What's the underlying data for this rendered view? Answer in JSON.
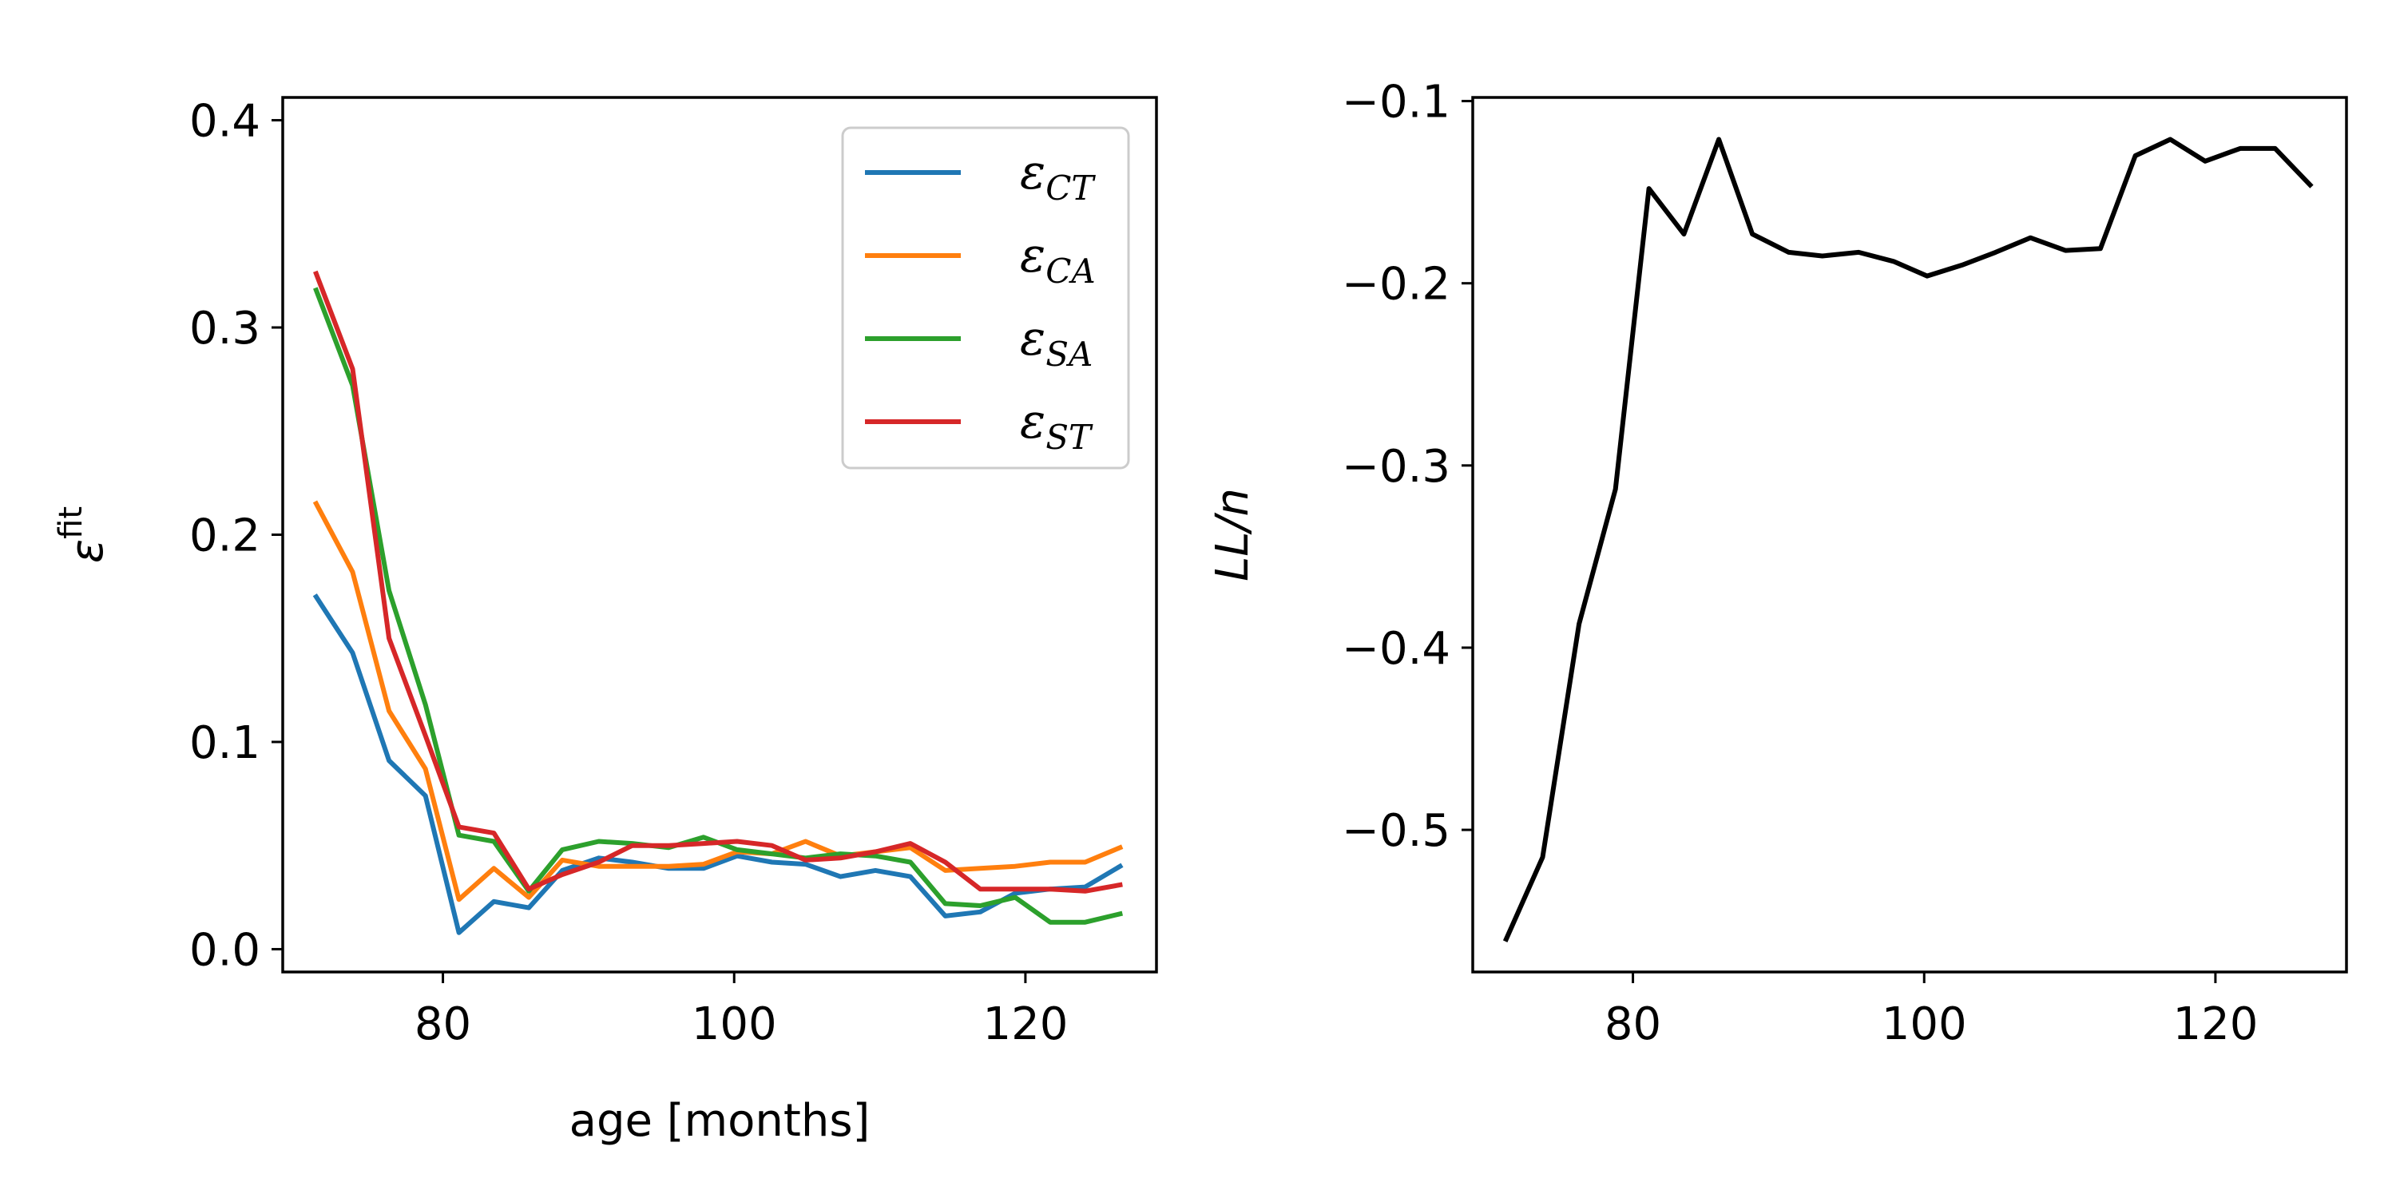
{
  "chart_data": [
    {
      "type": "line",
      "xlabel": "age [months]",
      "ylabel": "ε",
      "ylabel_superscript": "fit",
      "xlim": [
        69,
        129
      ],
      "ylim": [
        -0.011,
        0.411
      ],
      "xticks": [
        80,
        100,
        120
      ],
      "xtick_labels": [
        "80",
        "100",
        "120"
      ],
      "yticks": [
        0.0,
        0.1,
        0.2,
        0.3,
        0.4
      ],
      "ytick_labels": [
        "0.0",
        "0.1",
        "0.2",
        "0.3",
        "0.4"
      ],
      "grid": false,
      "legend_position": "top-right",
      "x": [
        71.3,
        73.8,
        76.3,
        78.8,
        81.1,
        83.5,
        85.9,
        88.2,
        90.7,
        93.0,
        95.5,
        97.9,
        100.2,
        102.6,
        104.9,
        107.3,
        109.7,
        112.1,
        114.5,
        116.9,
        119.3,
        121.7,
        124.1,
        126.5
      ],
      "series": [
        {
          "name": "ε",
          "sub": "CT",
          "color": "#1f77b4",
          "values": [
            0.17,
            0.143,
            0.091,
            0.074,
            0.008,
            0.023,
            0.02,
            0.038,
            0.044,
            0.042,
            0.039,
            0.039,
            0.045,
            0.042,
            0.041,
            0.035,
            0.038,
            0.035,
            0.016,
            0.018,
            0.027,
            0.029,
            0.03,
            0.04
          ]
        },
        {
          "name": "ε",
          "sub": "CA",
          "color": "#ff7f0e",
          "values": [
            0.215,
            0.182,
            0.115,
            0.087,
            0.024,
            0.039,
            0.025,
            0.043,
            0.04,
            0.04,
            0.04,
            0.041,
            0.047,
            0.046,
            0.052,
            0.045,
            0.047,
            0.049,
            0.038,
            0.039,
            0.04,
            0.042,
            0.042,
            0.049
          ]
        },
        {
          "name": "ε",
          "sub": "SA",
          "color": "#2ca02c",
          "values": [
            0.318,
            0.272,
            0.173,
            0.118,
            0.055,
            0.052,
            0.028,
            0.048,
            0.052,
            0.051,
            0.049,
            0.054,
            0.048,
            0.046,
            0.044,
            0.046,
            0.045,
            0.042,
            0.022,
            0.021,
            0.025,
            0.013,
            0.013,
            0.017
          ]
        },
        {
          "name": "ε",
          "sub": "ST",
          "color": "#d62728",
          "values": [
            0.326,
            0.28,
            0.15,
            0.103,
            0.059,
            0.056,
            0.029,
            0.036,
            0.042,
            0.05,
            0.05,
            0.051,
            0.052,
            0.05,
            0.043,
            0.044,
            0.047,
            0.051,
            0.042,
            0.029,
            0.029,
            0.029,
            0.028,
            0.031
          ]
        }
      ]
    },
    {
      "type": "line",
      "xlabel": "",
      "ylabel": "LL/n",
      "xlim": [
        69,
        129
      ],
      "ylim": [
        -0.578,
        -0.098
      ],
      "xticks": [
        80,
        100,
        120
      ],
      "xtick_labels": [
        "80",
        "100",
        "120"
      ],
      "yticks": [
        -0.5,
        -0.4,
        -0.3,
        -0.2,
        -0.1
      ],
      "ytick_labels": [
        "−0.5",
        "−0.4",
        "−0.3",
        "−0.2",
        "−0.1"
      ],
      "grid": false,
      "x": [
        71.3,
        73.8,
        76.3,
        78.8,
        81.1,
        83.5,
        85.9,
        88.2,
        90.7,
        93.0,
        95.5,
        97.9,
        100.2,
        102.6,
        104.9,
        107.3,
        109.7,
        112.1,
        114.5,
        116.9,
        119.3,
        121.7,
        124.1,
        126.5
      ],
      "series": [
        {
          "color": "#000000",
          "values": [
            -0.56,
            -0.515,
            -0.387,
            -0.313,
            -0.148,
            -0.173,
            -0.121,
            -0.173,
            -0.183,
            -0.185,
            -0.183,
            -0.188,
            -0.196,
            -0.19,
            -0.183,
            -0.175,
            -0.182,
            -0.181,
            -0.13,
            -0.121,
            -0.133,
            -0.126,
            -0.126,
            -0.146
          ]
        }
      ]
    }
  ]
}
